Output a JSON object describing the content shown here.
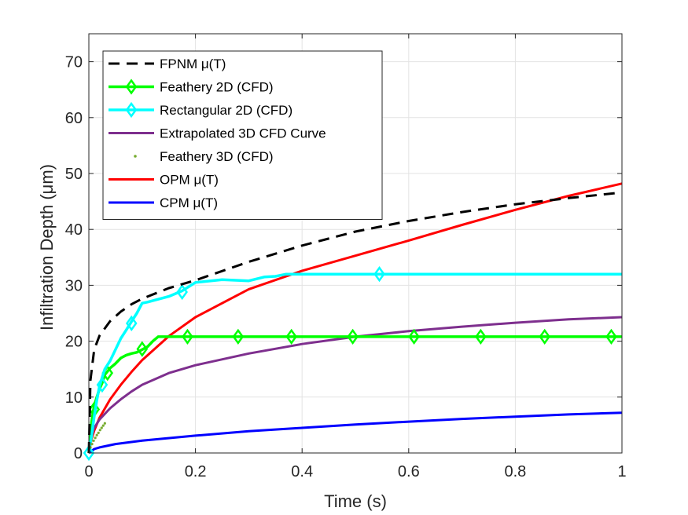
{
  "chart_data": {
    "type": "line",
    "xlabel": "Time (s)",
    "ylabel": "Infiltration Depth (μm)",
    "xlim": [
      0,
      1
    ],
    "ylim": [
      0,
      75
    ],
    "xticks": [
      0,
      0.2,
      0.4,
      0.6,
      0.8,
      1
    ],
    "xtick_labels": [
      "0",
      "0.2",
      "0.4",
      "0.6",
      "0.8",
      "1"
    ],
    "yticks": [
      0,
      10,
      20,
      30,
      40,
      50,
      60,
      70
    ],
    "ytick_labels": [
      "0",
      "10",
      "20",
      "30",
      "40",
      "50",
      "60",
      "70"
    ],
    "grid": true,
    "legend_position": "top-left",
    "series": [
      {
        "name": "FPNM μ(T)",
        "color": "#000000",
        "style": "dashed",
        "x": [
          0,
          0.003,
          0.01,
          0.02,
          0.04,
          0.06,
          0.08,
          0.1,
          0.15,
          0.2,
          0.3,
          0.4,
          0.5,
          0.6,
          0.7,
          0.8,
          0.9,
          1.0
        ],
        "y": [
          0,
          13,
          18.5,
          21,
          23.6,
          25.3,
          26.6,
          27.6,
          29.5,
          30.9,
          34.2,
          37.1,
          39.6,
          41.5,
          43.1,
          44.5,
          45.6,
          46.6
        ]
      },
      {
        "name": "Feathery 2D (CFD)",
        "color": "#00ff00",
        "style": "solid-diamond",
        "x": [
          0,
          0.005,
          0.01,
          0.015,
          0.02,
          0.025,
          0.03,
          0.04,
          0.05,
          0.06,
          0.07,
          0.08,
          0.09,
          0.1,
          0.11,
          0.12,
          0.13,
          0.15,
          0.18,
          0.25,
          0.4,
          0.6,
          0.8,
          1.0
        ],
        "y": [
          0,
          5.5,
          8.5,
          10,
          11.5,
          12.5,
          14,
          15.2,
          16,
          17,
          17.5,
          17.8,
          18,
          18.5,
          19,
          20,
          20.8,
          20.8,
          20.8,
          20.8,
          20.8,
          20.8,
          20.8,
          20.8
        ],
        "marker_x": [
          0.01,
          0.035,
          0.1,
          0.185,
          0.28,
          0.38,
          0.495,
          0.61,
          0.735,
          0.855,
          0.98
        ],
        "marker_y": [
          7.8,
          14.3,
          18.6,
          20.8,
          20.8,
          20.8,
          20.8,
          20.8,
          20.8,
          20.8,
          20.8
        ]
      },
      {
        "name": "Rectangular 2D (CFD)",
        "color": "#00ffff",
        "style": "solid-diamond",
        "x": [
          0,
          0.005,
          0.01,
          0.015,
          0.02,
          0.025,
          0.03,
          0.04,
          0.05,
          0.06,
          0.07,
          0.08,
          0.09,
          0.1,
          0.11,
          0.13,
          0.15,
          0.175,
          0.2,
          0.25,
          0.3,
          0.33,
          0.35,
          0.37,
          0.4,
          0.5,
          0.55,
          0.6,
          0.8,
          1.0
        ],
        "y": [
          0,
          3,
          6.5,
          9.5,
          12,
          13.5,
          15,
          16.5,
          18.5,
          20.5,
          22,
          23.5,
          25,
          26.8,
          27,
          27.5,
          28,
          29,
          30.5,
          31,
          30.8,
          31.5,
          31.6,
          32,
          32,
          32,
          32,
          32,
          32,
          32
        ],
        "marker_x": [
          0,
          0.025,
          0.08,
          0.175,
          0.545
        ],
        "marker_y": [
          0,
          12.2,
          23.2,
          28.8,
          32
        ]
      },
      {
        "name": "Extrapolated 3D CFD Curve",
        "color": "#7e2f8e",
        "style": "solid",
        "x": [
          0,
          0.005,
          0.01,
          0.02,
          0.04,
          0.06,
          0.08,
          0.1,
          0.15,
          0.2,
          0.3,
          0.4,
          0.5,
          0.6,
          0.7,
          0.8,
          0.9,
          1.0
        ],
        "y": [
          0,
          3,
          4.5,
          6,
          8,
          9.6,
          11,
          12.2,
          14.3,
          15.7,
          17.8,
          19.5,
          20.8,
          21.8,
          22.6,
          23.3,
          23.9,
          24.3
        ]
      },
      {
        "name": "Feathery 3D (CFD)",
        "color": "#77ac30",
        "style": "dots",
        "x": [
          0.003,
          0.006,
          0.009,
          0.012,
          0.015,
          0.018,
          0.021,
          0.024,
          0.027,
          0.03
        ],
        "y": [
          1,
          1.6,
          2.2,
          2.7,
          3.2,
          3.6,
          4.1,
          4.5,
          4.9,
          5.3
        ]
      },
      {
        "name": "OPM μ(T)",
        "color": "#ff0000",
        "style": "solid",
        "x": [
          0,
          0.005,
          0.01,
          0.02,
          0.04,
          0.06,
          0.08,
          0.1,
          0.15,
          0.2,
          0.3,
          0.4,
          0.5,
          0.6,
          0.7,
          0.8,
          0.9,
          1.0
        ],
        "y": [
          0,
          2.5,
          4,
          6.3,
          9.6,
          12.2,
          14.5,
          16.6,
          20.9,
          24.3,
          29.3,
          32.6,
          35.3,
          38,
          40.8,
          43.5,
          46,
          48.2
        ]
      },
      {
        "name": "CPM μ(T)",
        "color": "#0000ff",
        "style": "solid",
        "x": [
          0,
          0.01,
          0.02,
          0.05,
          0.1,
          0.2,
          0.3,
          0.4,
          0.5,
          0.6,
          0.7,
          0.8,
          0.9,
          1.0
        ],
        "y": [
          0,
          0.7,
          1.0,
          1.6,
          2.2,
          3.1,
          3.9,
          4.5,
          5.1,
          5.6,
          6.1,
          6.5,
          6.9,
          7.2
        ]
      }
    ]
  }
}
